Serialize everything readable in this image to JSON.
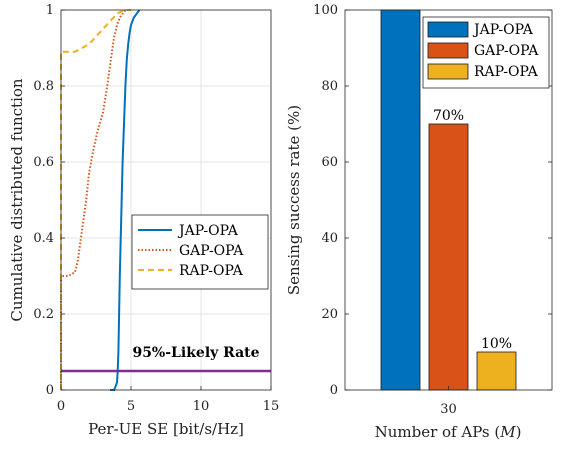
{
  "chart_data": [
    {
      "type": "line",
      "xlabel": "Per-UE SE [bit/s/Hz]",
      "ylabel": "Cumulative distributed function",
      "xlim": [
        0,
        15
      ],
      "ylim": [
        0,
        1
      ],
      "xticks": [
        "0",
        "5",
        "10",
        "15"
      ],
      "yticks": [
        "0",
        "0.2",
        "0.4",
        "0.6",
        "0.8",
        "1"
      ],
      "grid": true,
      "legend": "center-right",
      "annotation": "95%-Likely Rate",
      "reference_line": {
        "y": 0.05,
        "color": "#7e2f8e"
      },
      "series": [
        {
          "name": "JAP-OPA",
          "color": "#0072bd",
          "style": "solid",
          "x": [
            3.5,
            3.8,
            3.9,
            4.0,
            4.05,
            4.1,
            4.15,
            4.2,
            4.3,
            4.4,
            4.5,
            4.6,
            4.7,
            4.8,
            4.9,
            5.0,
            5.2,
            5.4,
            5.6
          ],
          "y": [
            0.0,
            0.0,
            0.01,
            0.02,
            0.05,
            0.1,
            0.2,
            0.3,
            0.45,
            0.6,
            0.7,
            0.8,
            0.87,
            0.91,
            0.94,
            0.96,
            0.98,
            0.99,
            1.0
          ]
        },
        {
          "name": "GAP-OPA",
          "color": "#d95319",
          "style": "dotted",
          "x": [
            0.0,
            0.0,
            0.5,
            1.0,
            1.2,
            1.5,
            1.8,
            2.0,
            2.3,
            2.6,
            3.0,
            3.3,
            3.6,
            3.8,
            4.0,
            4.2,
            4.4,
            4.6
          ],
          "y": [
            0.0,
            0.3,
            0.3,
            0.31,
            0.34,
            0.42,
            0.5,
            0.57,
            0.63,
            0.68,
            0.73,
            0.8,
            0.88,
            0.93,
            0.96,
            0.98,
            0.99,
            1.0
          ]
        },
        {
          "name": "RAP-OPA",
          "color": "#edb120",
          "style": "dashed",
          "x": [
            0.0,
            0.0,
            1.0,
            1.5,
            2.0,
            2.5,
            3.0,
            3.5,
            4.0,
            4.5,
            5.0
          ],
          "y": [
            0.0,
            0.89,
            0.89,
            0.9,
            0.91,
            0.93,
            0.95,
            0.97,
            0.99,
            1.0,
            1.0
          ]
        }
      ]
    },
    {
      "type": "bar",
      "xlabel": "Number of APs (M)",
      "xlabel_parts": [
        "Number of APs (",
        "M",
        ")"
      ],
      "ylabel": "Sensing success rate (%)",
      "categories": [
        "30"
      ],
      "ylim": [
        0,
        100
      ],
      "yticks": [
        "0",
        "20",
        "40",
        "60",
        "80",
        "100"
      ],
      "grid": false,
      "legend": "top-right",
      "series": [
        {
          "name": "JAP-OPA",
          "color": "#0072bd",
          "values": [
            100
          ],
          "label": ""
        },
        {
          "name": "GAP-OPA",
          "color": "#d95319",
          "values": [
            70
          ],
          "label": "70%"
        },
        {
          "name": "RAP-OPA",
          "color": "#edb120",
          "values": [
            10
          ],
          "label": "10%"
        }
      ]
    }
  ]
}
